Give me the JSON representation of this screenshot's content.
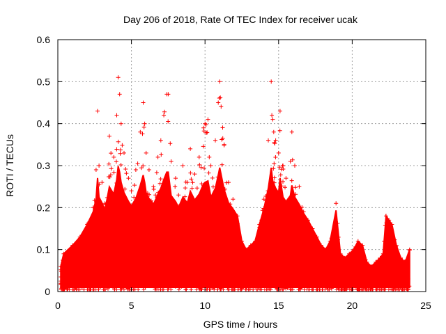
{
  "chart_data": {
    "type": "scatter",
    "title": "Day 206 of 2018, Rate Of TEC Index for receiver ucak",
    "xlabel": "GPS time / hours",
    "ylabel": "ROTI / TECUs",
    "xlim": [
      0,
      25
    ],
    "ylim": [
      0,
      0.6
    ],
    "x_ticks": [
      0,
      5,
      10,
      15,
      20,
      25
    ],
    "y_ticks": [
      0,
      0.1,
      0.2,
      0.3,
      0.4,
      0.5,
      0.6
    ],
    "x_tick_labels": [
      "0",
      "5",
      "10",
      "15",
      "20",
      "25"
    ],
    "y_tick_labels": [
      "0",
      "0.1",
      "0.2",
      "0.3",
      "0.4",
      "0.5",
      "0.6"
    ],
    "grid": true,
    "marker": "+",
    "marker_color": "#ff0000",
    "series": [
      {
        "name": "ROTI",
        "x": [
          0.2,
          0.4,
          1.0,
          1.5,
          2.0,
          2.4,
          2.6,
          2.7,
          2.8,
          3.0,
          3.2,
          3.5,
          3.8,
          4.0,
          4.1,
          4.2,
          4.3,
          4.5,
          4.8,
          5.0,
          5.3,
          5.6,
          5.8,
          5.9,
          6.0,
          6.2,
          6.5,
          6.8,
          7.0,
          7.2,
          7.4,
          7.5,
          7.7,
          8.0,
          8.2,
          8.5,
          8.8,
          9.0,
          9.3,
          9.6,
          9.9,
          10.0,
          10.2,
          10.4,
          10.7,
          10.9,
          11.0,
          11.3,
          11.6,
          11.9,
          12.2,
          12.5,
          12.8,
          13.1,
          13.4,
          13.7,
          14.0,
          14.3,
          14.5,
          14.6,
          14.8,
          15.0,
          15.1,
          15.3,
          15.5,
          15.8,
          15.9,
          16.1,
          16.4,
          16.7,
          17.0,
          17.3,
          17.6,
          17.9,
          18.2,
          18.5,
          18.9,
          19.2,
          19.5,
          19.8,
          20.1,
          20.4,
          20.7,
          21.0,
          21.3,
          21.6,
          21.9,
          22.1,
          22.3,
          22.5,
          22.7,
          23.0,
          23.3,
          23.6,
          23.9
        ],
        "y": [
          0.06,
          0.09,
          0.11,
          0.13,
          0.16,
          0.2,
          0.29,
          0.43,
          0.3,
          0.26,
          0.21,
          0.37,
          0.32,
          0.42,
          0.51,
          0.47,
          0.4,
          0.33,
          0.27,
          0.24,
          0.29,
          0.38,
          0.45,
          0.4,
          0.33,
          0.29,
          0.25,
          0.32,
          0.36,
          0.42,
          0.47,
          0.47,
          0.31,
          0.27,
          0.23,
          0.3,
          0.26,
          0.34,
          0.28,
          0.32,
          0.39,
          0.4,
          0.41,
          0.3,
          0.36,
          0.45,
          0.5,
          0.35,
          0.26,
          0.22,
          0.18,
          0.12,
          0.1,
          0.11,
          0.12,
          0.16,
          0.22,
          0.36,
          0.5,
          0.41,
          0.36,
          0.33,
          0.43,
          0.3,
          0.27,
          0.31,
          0.38,
          0.3,
          0.25,
          0.19,
          0.17,
          0.15,
          0.13,
          0.11,
          0.1,
          0.12,
          0.21,
          0.09,
          0.08,
          0.09,
          0.1,
          0.12,
          0.11,
          0.07,
          0.06,
          0.07,
          0.08,
          0.09,
          0.18,
          0.17,
          0.16,
          0.11,
          0.08,
          0.07,
          0.1
        ]
      }
    ]
  }
}
